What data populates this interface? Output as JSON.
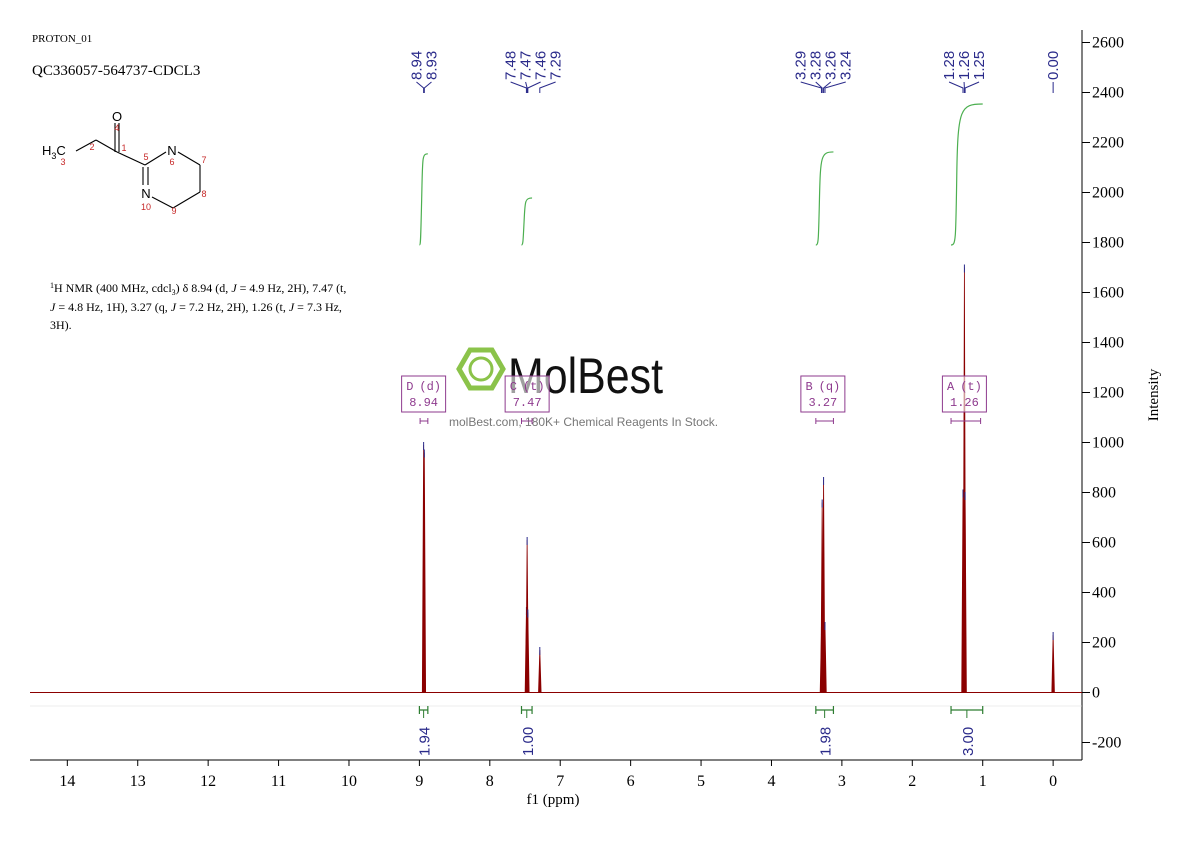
{
  "header": {
    "title": "PROTON_01",
    "sample": "QC336057-564737-CDCL3"
  },
  "structure": {
    "atoms": [
      "O",
      "N",
      "N"
    ],
    "methyl": [
      "H",
      "3",
      "C"
    ],
    "locants": [
      "1",
      "2",
      "3",
      "4",
      "5",
      "6",
      "7",
      "8",
      "9",
      "10"
    ]
  },
  "description": {
    "lines": [
      [
        "1",
        "H NMR (400 MHz, cdcl",
        "3",
        ") δ 8.94 (d, ",
        "J",
        " = 4.9 Hz, 2H), 7.47 (t,"
      ],
      [
        "J",
        " = 4.8 Hz, 1H), 3.27 (q, ",
        "J",
        " = 7.2 Hz, 2H), 1.26 (t, ",
        "J",
        " = 7.3 Hz,"
      ],
      [
        "3H)."
      ]
    ]
  },
  "watermark": {
    "brand": "MolBest",
    "tagline": "molBest.com, 180K+ Chemical Reagents In Stock."
  },
  "chart_data": {
    "type": "nmr",
    "xlabel": "f1 (ppm)",
    "ylabel": "Intensity",
    "xlim": [
      14.53,
      -0.41
    ],
    "ylim": [
      -270,
      2650
    ],
    "xticks": [
      14,
      13,
      12,
      11,
      10,
      9,
      8,
      7,
      6,
      5,
      4,
      3,
      2,
      1,
      0
    ],
    "yticks": [
      -200,
      0,
      200,
      400,
      600,
      800,
      1000,
      1200,
      1400,
      1600,
      1800,
      2000,
      2200,
      2400,
      2600
    ],
    "color": "#8b0000",
    "integral_color": "#4caf50",
    "label_color": "#2a2a8a",
    "multiplet_color": "#8e3a8e",
    "x": [
      8.94,
      8.93,
      7.48,
      7.47,
      7.46,
      7.29,
      3.29,
      3.28,
      3.26,
      3.24,
      1.28,
      1.26,
      1.25,
      0.0
    ],
    "values": [
      990,
      960,
      330,
      610,
      320,
      170,
      250,
      760,
      850,
      270,
      800,
      1700,
      790,
      230
    ],
    "peak_labels": [
      8.94,
      8.93,
      7.48,
      7.47,
      7.46,
      7.29,
      3.29,
      3.28,
      3.26,
      3.24,
      1.28,
      1.26,
      1.25,
      {
        "value": 0,
        "label": "0.00"
      }
    ],
    "multiplets": [
      {
        "name": "D",
        "multiplicity": "(d)",
        "shift": 8.94,
        "range": [
          8.99,
          8.88
        ]
      },
      {
        "name": "C",
        "multiplicity": "(t)",
        "shift": 7.47,
        "range": [
          7.55,
          7.4
        ]
      },
      {
        "name": "B",
        "multiplicity": "(q)",
        "shift": 3.27,
        "range": [
          3.37,
          3.12
        ]
      },
      {
        "name": "A",
        "multiplicity": "(t)",
        "shift": 1.26,
        "range": [
          1.45,
          1.03
        ]
      }
    ],
    "integrals": [
      {
        "value": 1.94,
        "range": [
          9.0,
          8.88
        ]
      },
      {
        "value": 1,
        "label": "1.00",
        "range": [
          7.55,
          7.4
        ]
      },
      {
        "value": 1.98,
        "range": [
          3.37,
          3.12
        ]
      },
      {
        "value": 3,
        "label": "3.00",
        "range": [
          1.45,
          1.0
        ]
      }
    ]
  }
}
